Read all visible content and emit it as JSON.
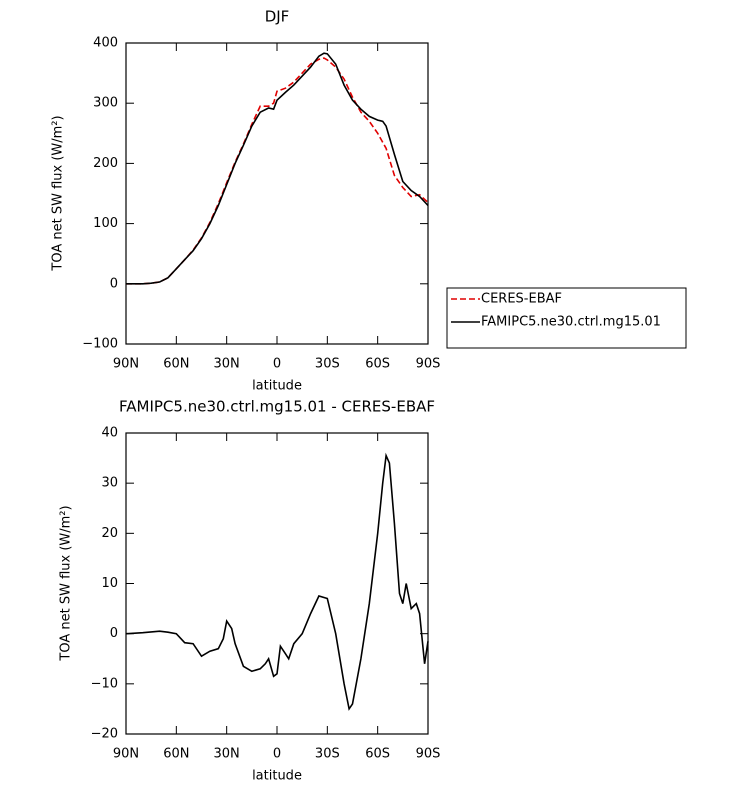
{
  "chart_data": [
    {
      "type": "line",
      "title": "DJF",
      "xlabel": "latitude",
      "ylabel": "TOA net SW flux (W/m²)",
      "xlim": [
        90,
        -90
      ],
      "xticks": [
        {
          "value": 90,
          "label": "90N"
        },
        {
          "value": 60,
          "label": "60N"
        },
        {
          "value": 30,
          "label": "30N"
        },
        0,
        {
          "value": -30,
          "label": "30S"
        },
        {
          "value": -60,
          "label": "60S"
        },
        {
          "value": -90,
          "label": "90S"
        }
      ],
      "ylim": [
        -100,
        400
      ],
      "yticks": [
        {
          "value": -100,
          "label": "−100"
        },
        0,
        100,
        200,
        300,
        400
      ],
      "legend": "right",
      "x": [
        90,
        85,
        80,
        75,
        70,
        65,
        60,
        55,
        50,
        45,
        40,
        35,
        30,
        25,
        20,
        15,
        10,
        5,
        2,
        0,
        -5,
        -10,
        -15,
        -20,
        -25,
        -28,
        -30,
        -35,
        -40,
        -45,
        -50,
        -55,
        -60,
        -63,
        -65,
        -70,
        -75,
        -80,
        -85,
        -90
      ],
      "series": [
        {
          "name": "CERES-EBAF",
          "color": "#e00000",
          "dashed": true,
          "values": [
            0,
            0,
            0,
            1,
            3,
            10,
            25,
            40,
            56,
            76,
            102,
            133,
            168,
            202,
            232,
            265,
            295,
            295,
            300,
            320,
            325,
            335,
            350,
            365,
            373,
            375,
            372,
            360,
            340,
            310,
            285,
            270,
            250,
            235,
            225,
            180,
            160,
            145,
            148,
            135
          ]
        },
        {
          "name": "FAMIPC5.ne30.ctrl.mg15.01",
          "color": "#000000",
          "dashed": false,
          "values": [
            0,
            0,
            0,
            1,
            3,
            10,
            25,
            40,
            55,
            75,
            100,
            130,
            165,
            200,
            230,
            262,
            285,
            292,
            290,
            305,
            318,
            330,
            345,
            360,
            378,
            383,
            382,
            365,
            330,
            305,
            290,
            278,
            272,
            270,
            262,
            215,
            170,
            155,
            145,
            130
          ]
        }
      ]
    },
    {
      "type": "line",
      "title": "FAMIPC5.ne30.ctrl.mg15.01 - CERES-EBAF",
      "xlabel": "latitude",
      "ylabel": "TOA net SW flux (W/m²)",
      "xlim": [
        90,
        -90
      ],
      "xticks": [
        {
          "value": 90,
          "label": "90N"
        },
        {
          "value": 60,
          "label": "60N"
        },
        {
          "value": 30,
          "label": "30N"
        },
        0,
        {
          "value": -30,
          "label": "30S"
        },
        {
          "value": -60,
          "label": "60S"
        },
        {
          "value": -90,
          "label": "90S"
        }
      ],
      "ylim": [
        -20,
        40
      ],
      "yticks": [
        {
          "value": -20,
          "label": "−20"
        },
        {
          "value": -10,
          "label": "−10"
        },
        0,
        10,
        20,
        30,
        40
      ],
      "x": [
        90,
        80,
        70,
        65,
        60,
        55,
        50,
        45,
        40,
        35,
        32,
        30,
        27,
        25,
        20,
        15,
        10,
        7,
        5,
        2,
        0,
        -2,
        -5,
        -7,
        -10,
        -15,
        -20,
        -25,
        -30,
        -35,
        -40,
        -43,
        -45,
        -50,
        -55,
        -60,
        -63,
        -65,
        -67,
        -70,
        -73,
        -75,
        -77,
        -80,
        -83,
        -85,
        -88,
        -90
      ],
      "series": [
        {
          "name": "FAMIPC5.ne30.ctrl.mg15.01 - CERES-EBAF",
          "color": "#000000",
          "dashed": false,
          "values": [
            0,
            0.2,
            0.5,
            0.3,
            0,
            -1.8,
            -2,
            -4.5,
            -3.5,
            -3,
            -1,
            2.5,
            1,
            -2,
            -6.5,
            -7.5,
            -7,
            -6,
            -5,
            -8.5,
            -8,
            -2.5,
            -4,
            -5,
            -2,
            0,
            4,
            7.5,
            7,
            0,
            -10,
            -15,
            -14,
            -5,
            6,
            20,
            30,
            35.5,
            34,
            22,
            8,
            6,
            10,
            5,
            6,
            4,
            -6,
            -1.5
          ]
        }
      ]
    }
  ]
}
